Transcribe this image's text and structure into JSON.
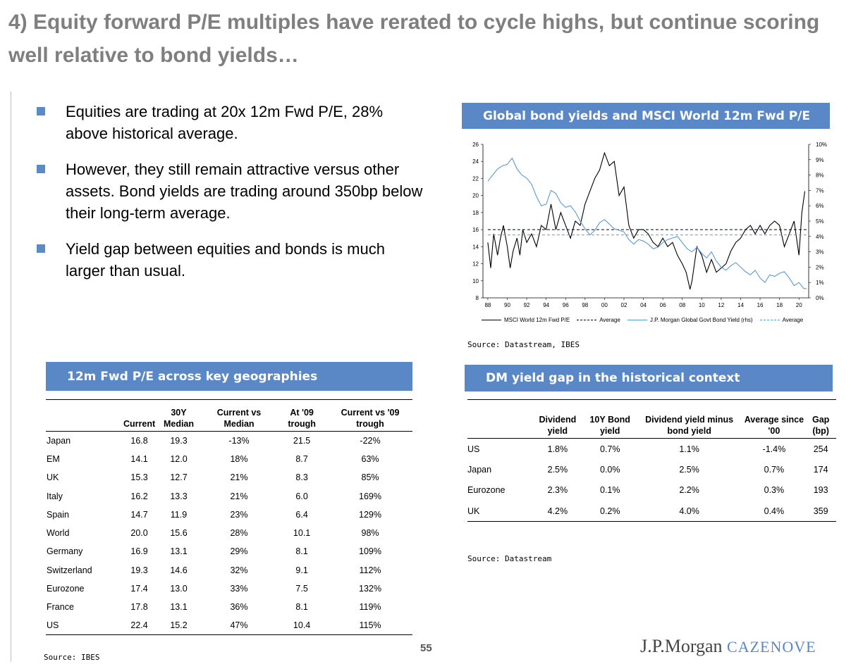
{
  "title": "4) Equity forward P/E multiples have rerated to cycle highs, but continue scoring well relative to bond yields…",
  "bullets": [
    "Equities are trading at 20x 12m Fwd P/E, 28% above historical average.",
    "However, they still remain attractive versus other assets. Bond yields are trading around 350bp below their long-term average.",
    "Yield gap between equities and bonds is much larger than usual."
  ],
  "colors": {
    "accent": "#5a87c5",
    "title": "#7f7f7f",
    "bond_line": "#5b9bd5"
  },
  "chart_header": "Global bond yields and MSCI World 12m Fwd P/E",
  "chart_source": "Source: Datastream, IBES",
  "chart_data": {
    "type": "line",
    "x_ticks": [
      "88",
      "90",
      "92",
      "94",
      "96",
      "98",
      "00",
      "02",
      "04",
      "06",
      "08",
      "10",
      "12",
      "14",
      "16",
      "18",
      "20"
    ],
    "y_left_ticks": [
      "8",
      "10",
      "12",
      "14",
      "16",
      "18",
      "20",
      "22",
      "24",
      "26"
    ],
    "y_right_ticks": [
      "0%",
      "1%",
      "2%",
      "3%",
      "4%",
      "5%",
      "6%",
      "7%",
      "8%",
      "9%",
      "10%"
    ],
    "ylim_left": [
      8,
      26
    ],
    "ylim_right": [
      0,
      10
    ],
    "xlim": [
      1987.5,
      2021
    ],
    "series": [
      {
        "name": "MSCI World 12m Fwd P/E",
        "axis": "left",
        "points": [
          [
            1988,
            14.5
          ],
          [
            1988.3,
            11.5
          ],
          [
            1988.6,
            15.5
          ],
          [
            1989,
            13
          ],
          [
            1989.3,
            15
          ],
          [
            1989.6,
            16.5
          ],
          [
            1990,
            14
          ],
          [
            1990.3,
            11.5
          ],
          [
            1990.6,
            13.5
          ],
          [
            1991,
            15
          ],
          [
            1991.3,
            13
          ],
          [
            1991.6,
            16
          ],
          [
            1992,
            14.5
          ],
          [
            1992.5,
            15.5
          ],
          [
            1993,
            14
          ],
          [
            1993.5,
            16.5
          ],
          [
            1994,
            16
          ],
          [
            1994.5,
            19
          ],
          [
            1995,
            16
          ],
          [
            1995.5,
            18
          ],
          [
            1996,
            16.5
          ],
          [
            1996.5,
            15
          ],
          [
            1997,
            17
          ],
          [
            1997.5,
            16.5
          ],
          [
            1998,
            19
          ],
          [
            1998.5,
            20.5
          ],
          [
            1999,
            22
          ],
          [
            1999.5,
            23
          ],
          [
            2000,
            25
          ],
          [
            2000.5,
            23.5
          ],
          [
            2001,
            24
          ],
          [
            2001.5,
            20
          ],
          [
            2002,
            21
          ],
          [
            2002.5,
            16.5
          ],
          [
            2003,
            15
          ],
          [
            2003.5,
            16
          ],
          [
            2004,
            16
          ],
          [
            2004.5,
            15.5
          ],
          [
            2005,
            14.5
          ],
          [
            2005.5,
            14
          ],
          [
            2006,
            15
          ],
          [
            2006.5,
            14
          ],
          [
            2007,
            14.5
          ],
          [
            2007.5,
            13
          ],
          [
            2008,
            12
          ],
          [
            2008.4,
            11
          ],
          [
            2008.8,
            9
          ],
          [
            2009,
            10
          ],
          [
            2009.5,
            14
          ],
          [
            2010,
            13
          ],
          [
            2010.5,
            11
          ],
          [
            2011,
            12.5
          ],
          [
            2011.5,
            11
          ],
          [
            2012,
            11.5
          ],
          [
            2012.5,
            12
          ],
          [
            2013,
            13.5
          ],
          [
            2013.5,
            14.5
          ],
          [
            2014,
            15
          ],
          [
            2014.5,
            16
          ],
          [
            2015,
            16.5
          ],
          [
            2015.5,
            15.5
          ],
          [
            2016,
            16.5
          ],
          [
            2016.5,
            15.5
          ],
          [
            2017,
            16.5
          ],
          [
            2017.5,
            17
          ],
          [
            2018,
            16.5
          ],
          [
            2018.5,
            14
          ],
          [
            2019,
            15.5
          ],
          [
            2019.5,
            17
          ],
          [
            2020,
            13
          ],
          [
            2020.3,
            18
          ],
          [
            2020.6,
            20.5
          ]
        ]
      },
      {
        "name": "Average",
        "axis": "left",
        "points": [
          [
            1988,
            16
          ],
          [
            2020.8,
            16
          ]
        ]
      },
      {
        "name": "J.P. Morgan Global Govt Bond Yield (rhs)",
        "axis": "right",
        "points": [
          [
            1988,
            7.6
          ],
          [
            1988.5,
            8
          ],
          [
            1989,
            8.4
          ],
          [
            1989.5,
            8.6
          ],
          [
            1990,
            8.7
          ],
          [
            1990.5,
            9.1
          ],
          [
            1991,
            8.4
          ],
          [
            1991.5,
            8
          ],
          [
            1992,
            7.8
          ],
          [
            1992.5,
            7.4
          ],
          [
            1993,
            6.6
          ],
          [
            1993.5,
            6
          ],
          [
            1994,
            6.1
          ],
          [
            1994.5,
            7
          ],
          [
            1995,
            6.8
          ],
          [
            1995.5,
            6.2
          ],
          [
            1996,
            5.9
          ],
          [
            1996.5,
            6
          ],
          [
            1997,
            5.6
          ],
          [
            1997.5,
            5
          ],
          [
            1998,
            4.5
          ],
          [
            1998.5,
            4.1
          ],
          [
            1999,
            4.4
          ],
          [
            1999.5,
            4.9
          ],
          [
            2000,
            5.1
          ],
          [
            2000.5,
            4.8
          ],
          [
            2001,
            4.5
          ],
          [
            2001.5,
            4.4
          ],
          [
            2002,
            4.3
          ],
          [
            2002.5,
            3.8
          ],
          [
            2003,
            3.5
          ],
          [
            2003.5,
            3.8
          ],
          [
            2004,
            3.7
          ],
          [
            2004.5,
            3.5
          ],
          [
            2005,
            3.2
          ],
          [
            2005.5,
            3.3
          ],
          [
            2006,
            3.6
          ],
          [
            2006.5,
            3.8
          ],
          [
            2007,
            3.9
          ],
          [
            2007.5,
            4
          ],
          [
            2008,
            3.6
          ],
          [
            2008.5,
            3.2
          ],
          [
            2009,
            3
          ],
          [
            2009.5,
            3.3
          ],
          [
            2010,
            2.9
          ],
          [
            2010.5,
            2.6
          ],
          [
            2011,
            3
          ],
          [
            2011.5,
            2.4
          ],
          [
            2012,
            2
          ],
          [
            2012.5,
            1.8
          ],
          [
            2013,
            2.1
          ],
          [
            2013.5,
            2.3
          ],
          [
            2014,
            2
          ],
          [
            2014.5,
            1.7
          ],
          [
            2015,
            1.5
          ],
          [
            2015.5,
            1.8
          ],
          [
            2016,
            1.3
          ],
          [
            2016.5,
            1
          ],
          [
            2017,
            1.5
          ],
          [
            2017.5,
            1.4
          ],
          [
            2018,
            1.6
          ],
          [
            2018.5,
            1.7
          ],
          [
            2019,
            1.3
          ],
          [
            2019.5,
            0.8
          ],
          [
            2020,
            1
          ],
          [
            2020.5,
            0.6
          ],
          [
            2020.8,
            0.6
          ]
        ]
      },
      {
        "name": "Average",
        "axis": "right",
        "points": [
          [
            1988,
            4.1
          ],
          [
            2020.8,
            4.1
          ]
        ]
      }
    ]
  },
  "table1": {
    "header": "12m Fwd P/E across key geographies",
    "columns": [
      "",
      "Current",
      "30Y Median",
      "Current vs Median",
      "At '09 trough",
      "Current vs '09 trough"
    ],
    "rows": [
      [
        "Japan",
        "16.8",
        "19.3",
        "-13%",
        "21.5",
        "-22%"
      ],
      [
        "EM",
        "14.1",
        "12.0",
        "18%",
        "8.7",
        "63%"
      ],
      [
        "UK",
        "15.3",
        "12.7",
        "21%",
        "8.3",
        "85%"
      ],
      [
        "Italy",
        "16.2",
        "13.3",
        "21%",
        "6.0",
        "169%"
      ],
      [
        "Spain",
        "14.7",
        "11.9",
        "23%",
        "6.4",
        "129%"
      ],
      [
        "World",
        "20.0",
        "15.6",
        "28%",
        "10.1",
        "98%"
      ],
      [
        "Germany",
        "16.9",
        "13.1",
        "29%",
        "8.1",
        "109%"
      ],
      [
        "Switzerland",
        "19.3",
        "14.6",
        "32%",
        "9.1",
        "112%"
      ],
      [
        "Eurozone",
        "17.4",
        "13.0",
        "33%",
        "7.5",
        "132%"
      ],
      [
        "France",
        "17.8",
        "13.1",
        "36%",
        "8.1",
        "119%"
      ],
      [
        "US",
        "22.4",
        "15.2",
        "47%",
        "10.4",
        "115%"
      ]
    ],
    "source": "Source: IBES"
  },
  "table2": {
    "header": "DM yield gap in the historical context",
    "columns": [
      "",
      "Dividend yield",
      "10Y Bond yield",
      "Dividend yield minus bond yield",
      "Average since '00",
      "Gap (bp)"
    ],
    "rows": [
      [
        "US",
        "1.8%",
        "0.7%",
        "1.1%",
        "-1.4%",
        "254"
      ],
      [
        "Japan",
        "2.5%",
        "0.0%",
        "2.5%",
        "0.7%",
        "174"
      ],
      [
        "Eurozone",
        "2.3%",
        "0.1%",
        "2.2%",
        "0.3%",
        "193"
      ],
      [
        "UK",
        "4.2%",
        "0.2%",
        "4.0%",
        "0.4%",
        "359"
      ]
    ],
    "source": "Source: Datastream"
  },
  "page_number": "55",
  "logo": {
    "main": "J.P.Morgan",
    "sub": "CAZENOVE"
  }
}
